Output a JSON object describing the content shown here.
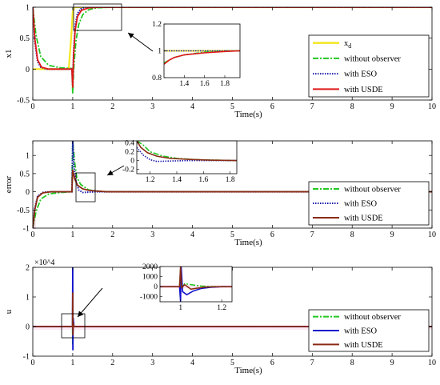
{
  "chart_data": [
    {
      "type": "line",
      "ylabel": "x1",
      "xlabel": "Time(s)",
      "xlim": [
        0,
        10
      ],
      "ylim": [
        -0.5,
        1
      ],
      "xticks": [
        "0",
        "1",
        "2",
        "3",
        "4",
        "5",
        "6",
        "7",
        "8",
        "9",
        "10"
      ],
      "yticks": [
        "-0.5",
        "0",
        "0.5",
        "1"
      ],
      "legend_position": "lower-right",
      "series": [
        {
          "name": "x_d",
          "color": "#f5e623",
          "style": "solid",
          "points": [
            [
              0,
              0
            ],
            [
              0.9,
              0
            ],
            [
              0.96,
              0.5
            ],
            [
              1.0,
              0.92
            ],
            [
              1.04,
              1
            ],
            [
              10,
              1
            ]
          ]
        },
        {
          "name": "without observer",
          "color": "#22c822",
          "style": "dashdot",
          "points": [
            [
              0,
              1
            ],
            [
              0.08,
              0.55
            ],
            [
              0.2,
              0.2
            ],
            [
              0.4,
              0.06
            ],
            [
              0.7,
              0.02
            ],
            [
              0.98,
              0.01
            ],
            [
              1.0,
              -0.4
            ],
            [
              1.03,
              0.05
            ],
            [
              1.08,
              0.45
            ],
            [
              1.15,
              0.72
            ],
            [
              1.25,
              0.88
            ],
            [
              1.4,
              0.96
            ],
            [
              1.6,
              0.99
            ],
            [
              2.0,
              1
            ],
            [
              10,
              1
            ]
          ]
        },
        {
          "name": "with ESO",
          "color": "#1a1aaa",
          "style": "dotted",
          "points": [
            [
              0,
              1
            ],
            [
              0.05,
              0.45
            ],
            [
              0.12,
              0.12
            ],
            [
              0.2,
              0.03
            ],
            [
              0.35,
              0
            ],
            [
              0.98,
              0
            ],
            [
              1.0,
              -0.25
            ],
            [
              1.02,
              0.25
            ],
            [
              1.06,
              0.7
            ],
            [
              1.12,
              0.9
            ],
            [
              1.2,
              0.97
            ],
            [
              1.3,
              1
            ],
            [
              10,
              1
            ]
          ]
        },
        {
          "name": "with USDE",
          "color": "#e01818",
          "style": "solid",
          "points": [
            [
              0,
              1
            ],
            [
              0.05,
              0.5
            ],
            [
              0.12,
              0.15
            ],
            [
              0.22,
              0.03
            ],
            [
              0.4,
              0
            ],
            [
              0.98,
              0
            ],
            [
              1.0,
              -0.3
            ],
            [
              1.02,
              0.2
            ],
            [
              1.06,
              0.62
            ],
            [
              1.12,
              0.85
            ],
            [
              1.22,
              0.95
            ],
            [
              1.4,
              0.99
            ],
            [
              1.7,
              1
            ],
            [
              10,
              1
            ]
          ]
        }
      ],
      "inset": {
        "xlim": [
          1.2,
          1.95
        ],
        "ylim": [
          0.8,
          1.2
        ],
        "xticks": [
          "1.4",
          "1.6",
          "1.8"
        ],
        "yticks": [
          "0.8",
          "1",
          "1.2"
        ],
        "series": [
          {
            "name": "x_d",
            "color": "#f5e623",
            "style": "solid",
            "points": [
              [
                1.2,
                1
              ],
              [
                1.95,
                1
              ]
            ]
          },
          {
            "name": "without observer",
            "color": "#22c822",
            "style": "dashdot",
            "points": [
              [
                1.2,
                0.91
              ],
              [
                1.3,
                0.95
              ],
              [
                1.4,
                0.97
              ],
              [
                1.6,
                0.99
              ],
              [
                1.8,
                1
              ],
              [
                1.95,
                1
              ]
            ]
          },
          {
            "name": "with ESO",
            "color": "#1a1aaa",
            "style": "dotted",
            "points": [
              [
                1.2,
                1
              ],
              [
                1.95,
                1
              ]
            ]
          },
          {
            "name": "with USDE",
            "color": "#e01818",
            "style": "solid",
            "points": [
              [
                1.2,
                0.9
              ],
              [
                1.25,
                0.93
              ],
              [
                1.3,
                0.95
              ],
              [
                1.4,
                0.97
              ],
              [
                1.6,
                0.985
              ],
              [
                1.8,
                0.995
              ],
              [
                1.95,
                1
              ]
            ]
          }
        ]
      }
    },
    {
      "type": "line",
      "ylabel": "error",
      "xlabel": "Time(s)",
      "xlim": [
        0,
        10
      ],
      "ylim": [
        -1,
        1.4
      ],
      "xticks": [
        "0",
        "1",
        "2",
        "3",
        "4",
        "5",
        "6",
        "7",
        "8",
        "9",
        "10"
      ],
      "yticks": [
        "-1",
        "-0.5",
        "0",
        "0.5",
        "1"
      ],
      "legend_position": "lower-right",
      "series": [
        {
          "name": "without observer",
          "color": "#22c822",
          "style": "dashdot",
          "points": [
            [
              0,
              -1
            ],
            [
              0.08,
              -0.55
            ],
            [
              0.2,
              -0.2
            ],
            [
              0.4,
              -0.06
            ],
            [
              0.7,
              -0.02
            ],
            [
              0.98,
              0
            ],
            [
              1.0,
              1.4
            ],
            [
              1.05,
              0.8
            ],
            [
              1.1,
              0.4
            ],
            [
              1.2,
              0.2
            ],
            [
              1.4,
              0.05
            ],
            [
              1.7,
              0.01
            ],
            [
              2.0,
              0
            ],
            [
              10,
              0
            ]
          ]
        },
        {
          "name": "with ESO",
          "color": "#1a1aaa",
          "style": "dotted",
          "points": [
            [
              0,
              -1
            ],
            [
              0.05,
              -0.45
            ],
            [
              0.12,
              -0.12
            ],
            [
              0.25,
              -0.02
            ],
            [
              0.4,
              0
            ],
            [
              0.98,
              0
            ],
            [
              1.0,
              1.4
            ],
            [
              1.03,
              0.7
            ],
            [
              1.08,
              0.3
            ],
            [
              1.15,
              0.05
            ],
            [
              1.25,
              -0.02
            ],
            [
              1.4,
              -0.01
            ],
            [
              1.6,
              0
            ],
            [
              10,
              0
            ]
          ]
        },
        {
          "name": "with USDE",
          "color": "#8b2a14",
          "style": "solid",
          "points": [
            [
              0,
              -1
            ],
            [
              0.05,
              -0.5
            ],
            [
              0.12,
              -0.15
            ],
            [
              0.25,
              -0.03
            ],
            [
              0.45,
              0
            ],
            [
              0.98,
              0
            ],
            [
              1.0,
              0.6
            ],
            [
              1.05,
              0.35
            ],
            [
              1.12,
              0.18
            ],
            [
              1.25,
              0.08
            ],
            [
              1.4,
              0.04
            ],
            [
              1.6,
              0.02
            ],
            [
              1.85,
              0
            ],
            [
              10,
              0
            ]
          ]
        }
      ],
      "inset": {
        "xlim": [
          1.1,
          1.85
        ],
        "ylim": [
          -0.3,
          0.45
        ],
        "xticks": [
          "1.2",
          "1.4",
          "1.6",
          "1.8"
        ],
        "yticks": [
          "-0.2",
          "0",
          "0.2",
          "0.4"
        ],
        "series": [
          {
            "name": "without observer",
            "color": "#22c822",
            "style": "dashdot",
            "points": [
              [
                1.1,
                0.45
              ],
              [
                1.15,
                0.35
              ],
              [
                1.2,
                0.2
              ],
              [
                1.3,
                0.1
              ],
              [
                1.4,
                0.05
              ],
              [
                1.55,
                0.02
              ],
              [
                1.7,
                0.01
              ],
              [
                1.85,
                0
              ]
            ]
          },
          {
            "name": "with ESO",
            "color": "#1a1aaa",
            "style": "dotted",
            "points": [
              [
                1.1,
                0.3
              ],
              [
                1.15,
                0.12
              ],
              [
                1.2,
                0.02
              ],
              [
                1.25,
                -0.02
              ],
              [
                1.35,
                -0.01
              ],
              [
                1.5,
                0
              ],
              [
                1.85,
                0
              ]
            ]
          },
          {
            "name": "with USDE",
            "color": "#8b2a14",
            "style": "solid",
            "points": [
              [
                1.1,
                0.45
              ],
              [
                1.13,
                0.3
              ],
              [
                1.18,
                0.18
              ],
              [
                1.25,
                0.1
              ],
              [
                1.35,
                0.05
              ],
              [
                1.5,
                0.025
              ],
              [
                1.65,
                0.01
              ],
              [
                1.85,
                0
              ]
            ]
          }
        ]
      }
    },
    {
      "type": "line",
      "ylabel": "u",
      "y_multiplier": "×10^4",
      "xlabel": "Time(s)",
      "xlim": [
        0,
        10
      ],
      "ylim": [
        -1,
        2
      ],
      "xticks": [
        "0",
        "1",
        "2",
        "3",
        "4",
        "5",
        "6",
        "7",
        "8",
        "9",
        "10"
      ],
      "yticks": [
        "-1",
        "0",
        "1",
        "2"
      ],
      "legend_position": "lower-right",
      "series": [
        {
          "name": "without observer",
          "color": "#22c822",
          "style": "dashdot",
          "points": [
            [
              0,
              0
            ],
            [
              0.995,
              0
            ],
            [
              1.0,
              -0.6
            ],
            [
              1.005,
              0.3
            ],
            [
              1.02,
              0
            ],
            [
              10,
              0
            ]
          ]
        },
        {
          "name": "with ESO",
          "color": "#1010cc",
          "style": "solid",
          "points": [
            [
              0,
              0
            ],
            [
              0.995,
              0
            ],
            [
              1.0,
              2.0
            ],
            [
              1.004,
              -0.8
            ],
            [
              1.01,
              0.3
            ],
            [
              1.03,
              0
            ],
            [
              10,
              0
            ]
          ]
        },
        {
          "name": "with USDE",
          "color": "#8b2a14",
          "style": "solid",
          "points": [
            [
              0,
              0
            ],
            [
              0.995,
              0
            ],
            [
              1.0,
              1.15
            ],
            [
              1.005,
              -0.3
            ],
            [
              1.015,
              0.1
            ],
            [
              1.03,
              0
            ],
            [
              10,
              0
            ]
          ]
        }
      ],
      "inset": {
        "xlim": [
          0.9,
          1.25
        ],
        "ylim": [
          -1500,
          2000
        ],
        "xticks": [
          "1",
          "1.2"
        ],
        "yticks": [
          "-1000",
          "0",
          "1000",
          "2000"
        ],
        "series": [
          {
            "name": "without observer",
            "color": "#22c822",
            "style": "dashdot",
            "points": [
              [
                0.9,
                0
              ],
              [
                0.995,
                0
              ],
              [
                1.0,
                2000
              ],
              [
                1.005,
                -200
              ],
              [
                1.02,
                300
              ],
              [
                1.05,
                200
              ],
              [
                1.1,
                60
              ],
              [
                1.15,
                10
              ],
              [
                1.25,
                0
              ]
            ]
          },
          {
            "name": "with ESO",
            "color": "#1010cc",
            "style": "solid",
            "points": [
              [
                0.9,
                0
              ],
              [
                0.995,
                0
              ],
              [
                1.0,
                -1500
              ],
              [
                1.003,
                2000
              ],
              [
                1.01,
                -500
              ],
              [
                1.03,
                -800
              ],
              [
                1.06,
                -450
              ],
              [
                1.1,
                -180
              ],
              [
                1.15,
                -50
              ],
              [
                1.2,
                0
              ],
              [
                1.25,
                0
              ]
            ]
          },
          {
            "name": "with USDE",
            "color": "#8b2a14",
            "style": "solid",
            "points": [
              [
                0.9,
                0
              ],
              [
                0.995,
                0
              ],
              [
                1.0,
                2000
              ],
              [
                1.005,
                -100
              ],
              [
                1.02,
                200
              ],
              [
                1.05,
                -250
              ],
              [
                1.08,
                -150
              ],
              [
                1.12,
                -40
              ],
              [
                1.18,
                0
              ],
              [
                1.25,
                0
              ]
            ]
          }
        ]
      }
    }
  ]
}
